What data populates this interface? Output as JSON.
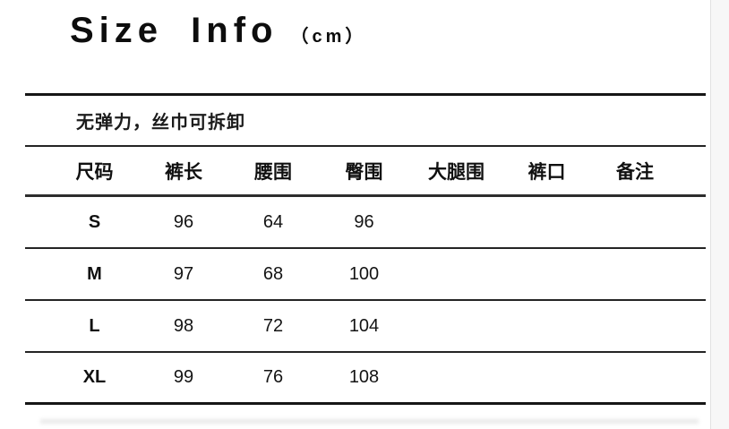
{
  "title": {
    "text": "Size Info",
    "unit": "（cm）"
  },
  "note": "无弹力，丝巾可拆卸",
  "table": {
    "headers": [
      "尺码",
      "裤长",
      "腰围",
      "臀围",
      "大腿围",
      "裤口",
      "备注"
    ],
    "rows": [
      {
        "size": "S",
        "values": [
          "96",
          "64",
          "96",
          "",
          "",
          ""
        ]
      },
      {
        "size": "M",
        "values": [
          "97",
          "68",
          "100",
          "",
          "",
          ""
        ]
      },
      {
        "size": "L",
        "values": [
          "98",
          "72",
          "104",
          "",
          "",
          ""
        ]
      },
      {
        "size": "XL",
        "values": [
          "99",
          "76",
          "108",
          "",
          "",
          ""
        ]
      }
    ]
  },
  "colors": {
    "text": "#161616",
    "rule_line": "#242424",
    "edge_strip_bg": "#f7f7f7"
  }
}
